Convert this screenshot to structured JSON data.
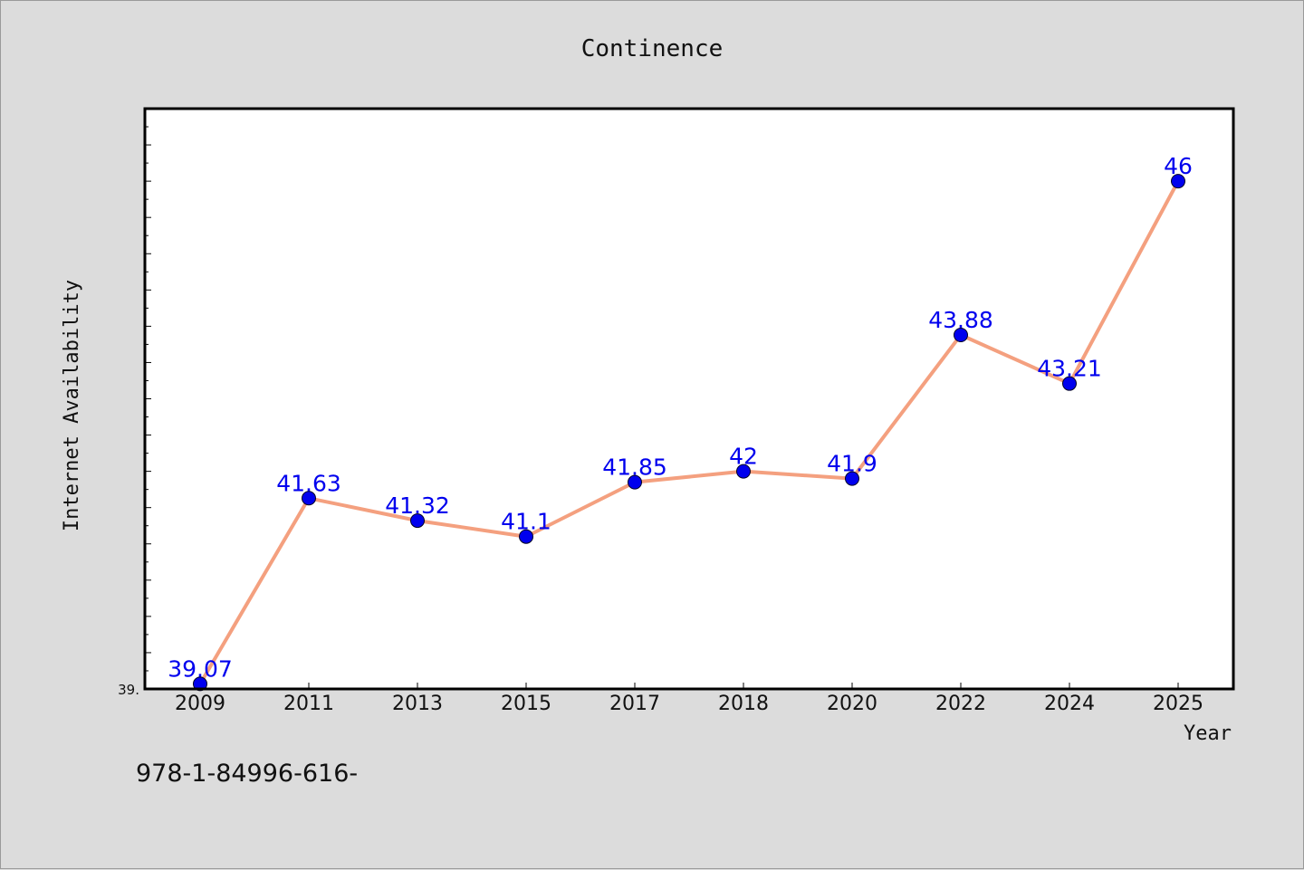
{
  "chart_data": {
    "type": "line",
    "title": "Continence",
    "xlabel": "Year",
    "ylabel": "Internet Availability",
    "categories": [
      "2009",
      "2011",
      "2013",
      "2015",
      "2017",
      "2018",
      "2020",
      "2022",
      "2024",
      "2025"
    ],
    "series": [
      {
        "values": [
          39.07,
          41.63,
          41.32,
          41.1,
          41.85,
          42,
          41.9,
          43.88,
          43.21,
          46
        ],
        "labels": [
          "39.07",
          "41.63",
          "41.32",
          "41.1",
          "41.85",
          "42",
          "41.9",
          "43.88",
          "43.21",
          "46"
        ]
      }
    ],
    "ylim": [
      39,
      47
    ],
    "y_min_label": "39.",
    "grid": false,
    "legend": "none",
    "colors": {
      "line": "#f4a07f",
      "marker": "#0000ee",
      "label": "#0000ee",
      "frame": "#000000",
      "plot_bg": "#ffffff",
      "page_bg": "#dcdcdc"
    }
  },
  "footnote": "978-1-84996-616-"
}
